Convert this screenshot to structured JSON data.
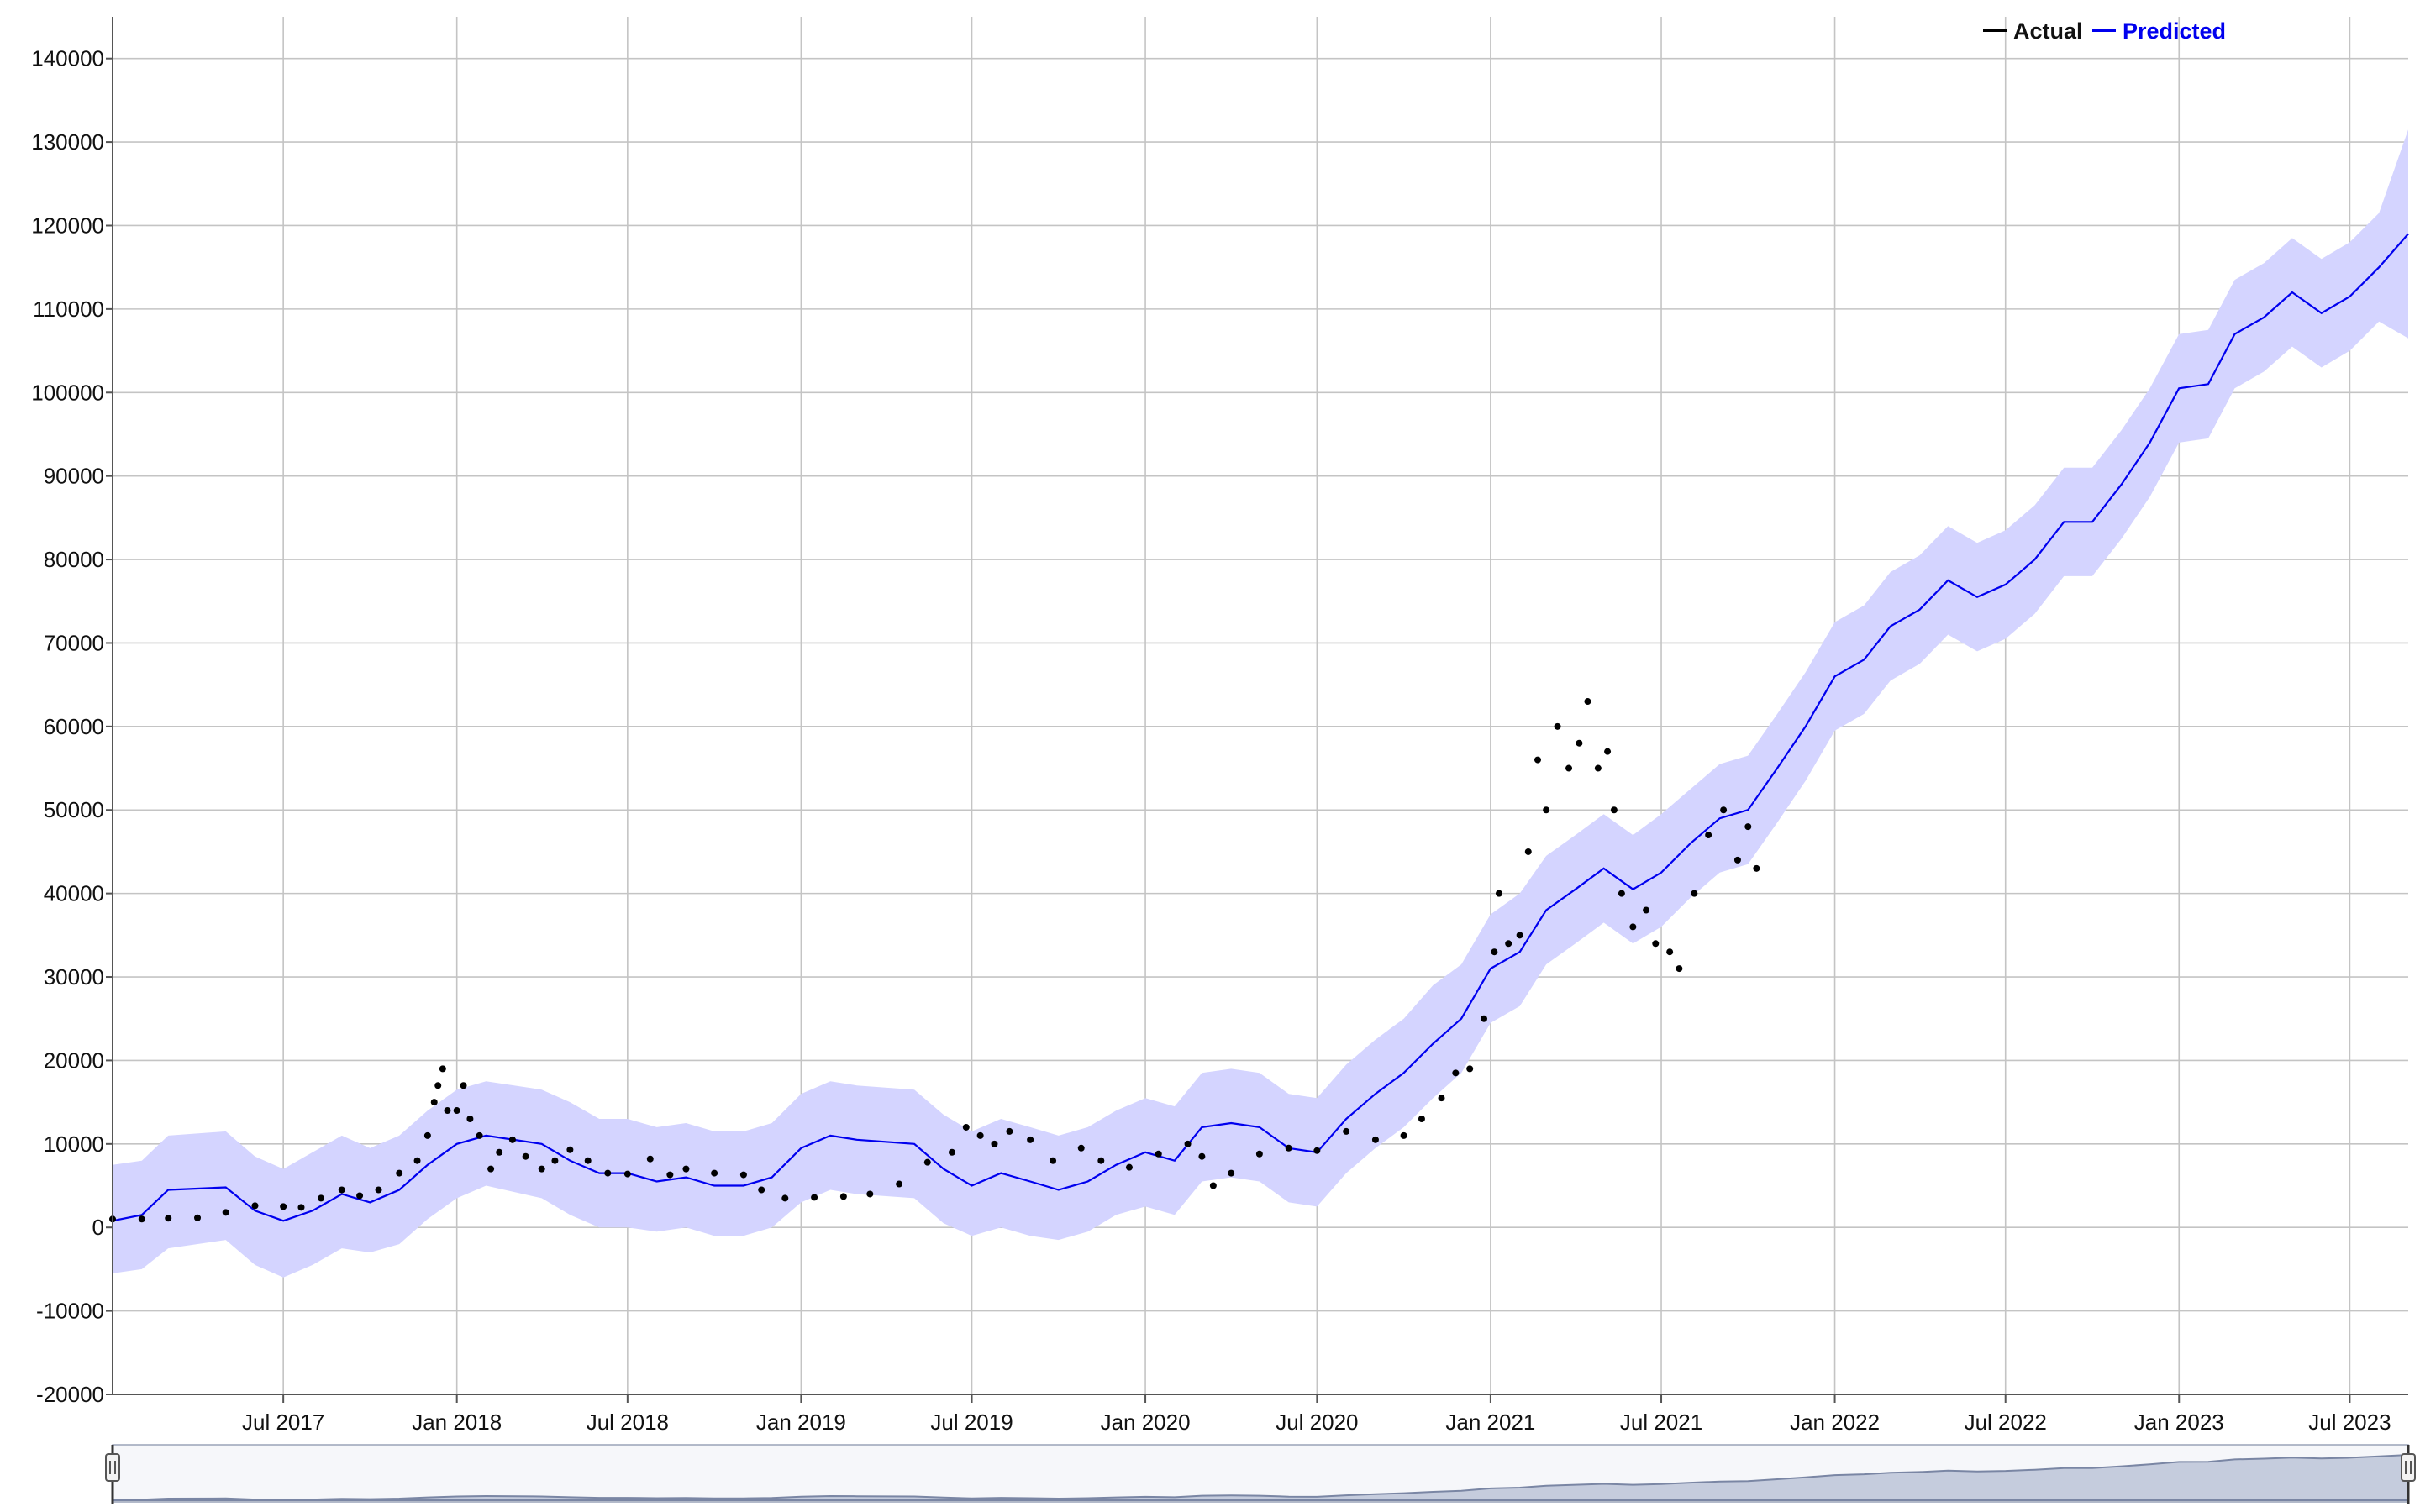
{
  "chart_data": {
    "type": "scatter",
    "title": "",
    "xlabel": "",
    "ylabel": "",
    "ylim": [
      -20000,
      145000
    ],
    "xlim": [
      "2017-01-01",
      "2023-09-01"
    ],
    "y_ticks": [
      "140000",
      "130000",
      "120000",
      "110000",
      "100000",
      "90000",
      "80000",
      "70000",
      "60000",
      "50000",
      "40000",
      "30000",
      "20000",
      "10000",
      "0",
      "-10000",
      "-20000"
    ],
    "x_ticks": [
      "Jul 2017",
      "Jan 2018",
      "Jul 2018",
      "Jan 2019",
      "Jul 2019",
      "Jan 2020",
      "Jul 2020",
      "Jan 2021",
      "Jul 2021",
      "Jan 2022",
      "Jul 2022",
      "Jan 2023",
      "Jul 2023"
    ],
    "grid": true,
    "legend_position": "top-right",
    "colors": {
      "actual": "#000000",
      "predicted": "#0000ee",
      "band": "#d4d4ff",
      "navigator": "#9fa8c4"
    },
    "series": [
      {
        "name": "Actual",
        "kind": "points",
        "points": [
          [
            "2017-01-01",
            1000
          ],
          [
            "2017-02-01",
            1000
          ],
          [
            "2017-03-01",
            1100
          ],
          [
            "2017-04-01",
            1150
          ],
          [
            "2017-05-01",
            1800
          ],
          [
            "2017-06-01",
            2600
          ],
          [
            "2017-07-01",
            2500
          ],
          [
            "2017-07-20",
            2400
          ],
          [
            "2017-08-10",
            3500
          ],
          [
            "2017-09-01",
            4500
          ],
          [
            "2017-09-20",
            3800
          ],
          [
            "2017-10-10",
            4500
          ],
          [
            "2017-11-01",
            6500
          ],
          [
            "2017-11-20",
            8000
          ],
          [
            "2017-12-01",
            11000
          ],
          [
            "2017-12-08",
            15000
          ],
          [
            "2017-12-12",
            17000
          ],
          [
            "2017-12-17",
            19000
          ],
          [
            "2017-12-22",
            14000
          ],
          [
            "2018-01-01",
            14000
          ],
          [
            "2018-01-08",
            17000
          ],
          [
            "2018-01-15",
            13000
          ],
          [
            "2018-01-25",
            11000
          ],
          [
            "2018-02-06",
            7000
          ],
          [
            "2018-02-15",
            9000
          ],
          [
            "2018-03-01",
            10500
          ],
          [
            "2018-03-15",
            8500
          ],
          [
            "2018-04-01",
            7000
          ],
          [
            "2018-04-15",
            8000
          ],
          [
            "2018-05-01",
            9300
          ],
          [
            "2018-05-20",
            8000
          ],
          [
            "2018-06-10",
            6500
          ],
          [
            "2018-07-01",
            6400
          ],
          [
            "2018-07-25",
            8200
          ],
          [
            "2018-08-15",
            6300
          ],
          [
            "2018-09-01",
            7000
          ],
          [
            "2018-10-01",
            6500
          ],
          [
            "2018-11-01",
            6300
          ],
          [
            "2018-11-20",
            4500
          ],
          [
            "2018-12-15",
            3500
          ],
          [
            "2019-01-15",
            3600
          ],
          [
            "2019-02-15",
            3700
          ],
          [
            "2019-03-15",
            4000
          ],
          [
            "2019-04-15",
            5200
          ],
          [
            "2019-05-15",
            7800
          ],
          [
            "2019-06-10",
            9000
          ],
          [
            "2019-06-25",
            12000
          ],
          [
            "2019-07-10",
            11000
          ],
          [
            "2019-07-25",
            10000
          ],
          [
            "2019-08-10",
            11500
          ],
          [
            "2019-09-01",
            10500
          ],
          [
            "2019-09-25",
            8000
          ],
          [
            "2019-10-25",
            9500
          ],
          [
            "2019-11-15",
            8000
          ],
          [
            "2019-12-15",
            7200
          ],
          [
            "2020-01-15",
            8800
          ],
          [
            "2020-02-15",
            10000
          ],
          [
            "2020-03-01",
            8500
          ],
          [
            "2020-03-13",
            5000
          ],
          [
            "2020-04-01",
            6500
          ],
          [
            "2020-05-01",
            8800
          ],
          [
            "2020-06-01",
            9500
          ],
          [
            "2020-07-01",
            9200
          ],
          [
            "2020-08-01",
            11500
          ],
          [
            "2020-09-01",
            10500
          ],
          [
            "2020-10-01",
            11000
          ],
          [
            "2020-10-20",
            13000
          ],
          [
            "2020-11-10",
            15500
          ],
          [
            "2020-11-25",
            18500
          ],
          [
            "2020-12-10",
            19000
          ],
          [
            "2020-12-25",
            25000
          ],
          [
            "2021-01-05",
            33000
          ],
          [
            "2021-01-10",
            40000
          ],
          [
            "2021-01-20",
            34000
          ],
          [
            "2021-02-01",
            35000
          ],
          [
            "2021-02-10",
            45000
          ],
          [
            "2021-02-20",
            56000
          ],
          [
            "2021-03-01",
            50000
          ],
          [
            "2021-03-13",
            60000
          ],
          [
            "2021-03-25",
            55000
          ],
          [
            "2021-04-05",
            58000
          ],
          [
            "2021-04-14",
            63000
          ],
          [
            "2021-04-25",
            55000
          ],
          [
            "2021-05-05",
            57000
          ],
          [
            "2021-05-12",
            50000
          ],
          [
            "2021-05-20",
            40000
          ],
          [
            "2021-06-01",
            36000
          ],
          [
            "2021-06-15",
            38000
          ],
          [
            "2021-06-25",
            34000
          ],
          [
            "2021-07-10",
            33000
          ],
          [
            "2021-07-20",
            31000
          ],
          [
            "2021-08-05",
            40000
          ],
          [
            "2021-08-20",
            47000
          ],
          [
            "2021-09-05",
            50000
          ],
          [
            "2021-09-20",
            44000
          ],
          [
            "2021-10-01",
            48000
          ],
          [
            "2021-10-10",
            43000
          ]
        ]
      },
      {
        "name": "Predicted",
        "kind": "line_with_band",
        "points": [
          [
            "2017-01-01",
            800,
            -5500,
            7500
          ],
          [
            "2017-02-01",
            1500,
            -5000,
            8000
          ],
          [
            "2017-03-01",
            4500,
            -2500,
            11000
          ],
          [
            "2017-05-01",
            4800,
            -1500,
            11500
          ],
          [
            "2017-06-01",
            2000,
            -4500,
            8500
          ],
          [
            "2017-07-01",
            800,
            -6000,
            7000
          ],
          [
            "2017-08-01",
            2000,
            -4500,
            9000
          ],
          [
            "2017-09-01",
            4000,
            -2500,
            11000
          ],
          [
            "2017-10-01",
            3000,
            -3000,
            9500
          ],
          [
            "2017-11-01",
            4500,
            -2000,
            11000
          ],
          [
            "2017-12-01",
            7500,
            1000,
            14000
          ],
          [
            "2018-01-01",
            10000,
            3500,
            16500
          ],
          [
            "2018-02-01",
            11000,
            5000,
            17500
          ],
          [
            "2018-04-01",
            10000,
            3500,
            16500
          ],
          [
            "2018-05-01",
            8000,
            1500,
            15000
          ],
          [
            "2018-06-01",
            6500,
            0,
            13000
          ],
          [
            "2018-07-01",
            6500,
            0,
            13000
          ],
          [
            "2018-08-01",
            5500,
            -500,
            12000
          ],
          [
            "2018-09-01",
            6000,
            0,
            12500
          ],
          [
            "2018-10-01",
            5000,
            -1000,
            11500
          ],
          [
            "2018-11-01",
            5000,
            -1000,
            11500
          ],
          [
            "2018-12-01",
            6000,
            0,
            12500
          ],
          [
            "2019-01-01",
            9500,
            3000,
            16000
          ],
          [
            "2019-02-01",
            11000,
            4500,
            17500
          ],
          [
            "2019-03-01",
            10500,
            4000,
            17000
          ],
          [
            "2019-05-01",
            10000,
            3500,
            16500
          ],
          [
            "2019-06-01",
            7000,
            500,
            13500
          ],
          [
            "2019-07-01",
            5000,
            -1000,
            11500
          ],
          [
            "2019-08-01",
            6500,
            0,
            13000
          ],
          [
            "2019-09-01",
            5500,
            -1000,
            12000
          ],
          [
            "2019-10-01",
            4500,
            -1500,
            11000
          ],
          [
            "2019-11-01",
            5500,
            -500,
            12000
          ],
          [
            "2019-12-01",
            7500,
            1500,
            14000
          ],
          [
            "2020-01-01",
            9000,
            2500,
            15500
          ],
          [
            "2020-02-01",
            8000,
            1500,
            14500
          ],
          [
            "2020-03-01",
            12000,
            5500,
            18500
          ],
          [
            "2020-04-01",
            12500,
            6000,
            19000
          ],
          [
            "2020-05-01",
            12000,
            5500,
            18500
          ],
          [
            "2020-06-01",
            9500,
            3000,
            16000
          ],
          [
            "2020-07-01",
            9000,
            2500,
            15500
          ],
          [
            "2020-08-01",
            13000,
            6500,
            19500
          ],
          [
            "2020-09-01",
            16000,
            9500,
            22500
          ],
          [
            "2020-10-01",
            18500,
            12000,
            25000
          ],
          [
            "2020-11-01",
            22000,
            15500,
            29000
          ],
          [
            "2020-12-01",
            25000,
            18500,
            31500
          ],
          [
            "2021-01-01",
            31000,
            24500,
            37500
          ],
          [
            "2021-02-01",
            33000,
            26500,
            40000
          ],
          [
            "2021-03-01",
            38000,
            31500,
            44500
          ],
          [
            "2021-04-01",
            40500,
            34000,
            47000
          ],
          [
            "2021-05-01",
            43000,
            36500,
            49500
          ],
          [
            "2021-06-01",
            40500,
            34000,
            47000
          ],
          [
            "2021-07-01",
            42500,
            36000,
            49500
          ],
          [
            "2021-08-01",
            46000,
            39500,
            52500
          ],
          [
            "2021-09-01",
            49000,
            42500,
            55500
          ],
          [
            "2021-10-01",
            50000,
            43500,
            56500
          ],
          [
            "2021-11-01",
            55000,
            48500,
            61500
          ],
          [
            "2021-12-01",
            60000,
            53500,
            66500
          ],
          [
            "2022-01-01",
            66000,
            59500,
            72500
          ],
          [
            "2022-02-01",
            68000,
            61500,
            74500
          ],
          [
            "2022-03-01",
            72000,
            65500,
            78500
          ],
          [
            "2022-04-01",
            74000,
            67500,
            80500
          ],
          [
            "2022-05-01",
            77500,
            71000,
            84000
          ],
          [
            "2022-06-01",
            75500,
            69000,
            82000
          ],
          [
            "2022-07-01",
            77000,
            70500,
            83500
          ],
          [
            "2022-08-01",
            80000,
            73500,
            86500
          ],
          [
            "2022-09-01",
            84500,
            78000,
            91000
          ],
          [
            "2022-10-01",
            84500,
            78000,
            91000
          ],
          [
            "2022-11-01",
            89000,
            82500,
            95500
          ],
          [
            "2022-12-01",
            94000,
            87500,
            100500
          ],
          [
            "2023-01-01",
            100500,
            94000,
            107000
          ],
          [
            "2023-02-01",
            101000,
            94500,
            107500
          ],
          [
            "2023-03-01",
            107000,
            100500,
            113500
          ],
          [
            "2023-04-01",
            109000,
            102500,
            115500
          ],
          [
            "2023-05-01",
            112000,
            105500,
            118500
          ],
          [
            "2023-06-01",
            109500,
            103000,
            116000
          ],
          [
            "2023-07-01",
            111500,
            105000,
            118000
          ],
          [
            "2023-08-01",
            115000,
            108500,
            121500
          ],
          [
            "2023-09-01",
            119000,
            106500,
            131500
          ]
        ]
      }
    ]
  }
}
